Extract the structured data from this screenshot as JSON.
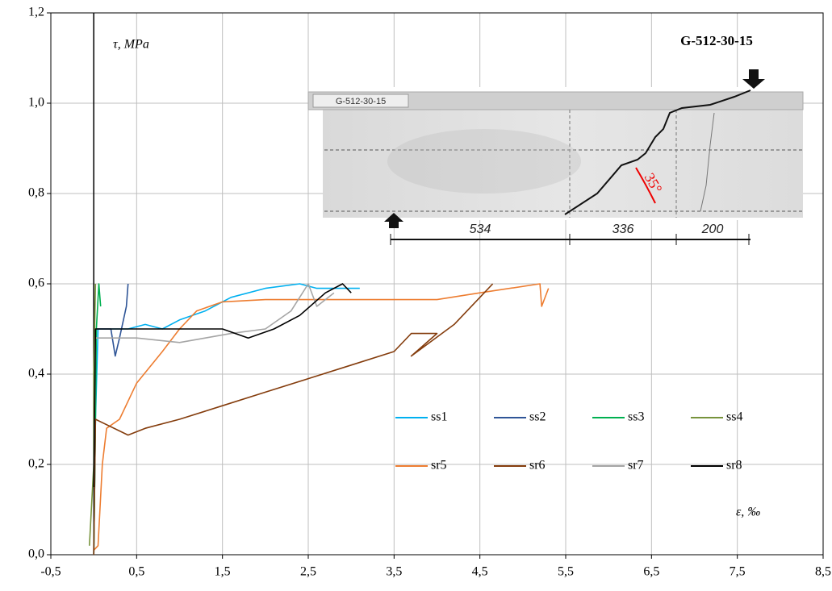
{
  "chart_data": {
    "type": "line",
    "axis_labels": {
      "y": "τ, MPa",
      "x": "ε, ‰"
    },
    "annotations": {
      "specimen": "G-512-30-15",
      "photo_label": "G-512-30-15",
      "dimensions": [
        "534",
        "336",
        "200"
      ],
      "angle": "35°"
    },
    "xlim": [
      -0.5,
      8.5
    ],
    "ylim": [
      0,
      1.2
    ],
    "xticks": [
      {
        "value": -0.5,
        "label": "-0,5"
      },
      {
        "value": 0.5,
        "label": "0,5"
      },
      {
        "value": 1.5,
        "label": "1,5"
      },
      {
        "value": 2.5,
        "label": "2,5"
      },
      {
        "value": 3.5,
        "label": "3,5"
      },
      {
        "value": 4.5,
        "label": "4,5"
      },
      {
        "value": 5.5,
        "label": "5,5"
      },
      {
        "value": 6.5,
        "label": "6,5"
      },
      {
        "value": 7.5,
        "label": "7,5"
      },
      {
        "value": 8.5,
        "label": "8,5"
      }
    ],
    "yticks": [
      {
        "value": 0,
        "label": "0,0"
      },
      {
        "value": 0.2,
        "label": "0,2"
      },
      {
        "value": 0.4,
        "label": "0,4"
      },
      {
        "value": 0.6,
        "label": "0,6"
      },
      {
        "value": 0.8,
        "label": "0,8"
      },
      {
        "value": 1.0,
        "label": "1,0"
      },
      {
        "value": 1.2,
        "label": "1,2"
      }
    ],
    "grid": true,
    "series": [
      {
        "name": "ss1",
        "color": "#00b0f0",
        "x": [
          0,
          0.02,
          0.05,
          0.4,
          0.6,
          0.8,
          1.0,
          1.3,
          1.6,
          2.0,
          2.4,
          2.6,
          3.1
        ],
        "values": [
          0,
          0.3,
          0.5,
          0.5,
          0.51,
          0.5,
          0.52,
          0.54,
          0.57,
          0.59,
          0.6,
          0.59,
          0.59
        ]
      },
      {
        "name": "ss2",
        "color": "#2f5597",
        "x": [
          0,
          0.01,
          0.03,
          0.2,
          0.25,
          0.3,
          0.38,
          0.4
        ],
        "values": [
          0,
          0.3,
          0.5,
          0.5,
          0.44,
          0.48,
          0.55,
          0.6
        ]
      },
      {
        "name": "ss3",
        "color": "#00b050",
        "x": [
          0,
          0.02,
          0.03,
          0.06,
          0.08
        ],
        "values": [
          0,
          0.3,
          0.5,
          0.6,
          0.55
        ]
      },
      {
        "name": "ss4",
        "color": "#77933c",
        "x": [
          -0.05,
          0,
          0,
          0.02
        ],
        "values": [
          0.02,
          0.2,
          0.4,
          0.6
        ]
      },
      {
        "name": "sr5",
        "color": "#ed7d31",
        "x": [
          0,
          0.05,
          0.1,
          0.15,
          0.3,
          0.5,
          0.8,
          1.0,
          1.2,
          1.5,
          2.0,
          3.0,
          4.0,
          4.5,
          5.2,
          5.22,
          5.3
        ],
        "values": [
          0.01,
          0.02,
          0.2,
          0.28,
          0.3,
          0.38,
          0.45,
          0.5,
          0.54,
          0.56,
          0.565,
          0.565,
          0.565,
          0.58,
          0.6,
          0.55,
          0.59
        ]
      },
      {
        "name": "sr6",
        "color": "#843c0c",
        "x": [
          0,
          0.02,
          0.4,
          0.6,
          1.0,
          1.5,
          2.0,
          2.5,
          3.0,
          3.5,
          3.7,
          4.0,
          3.7,
          4.2,
          4.5,
          4.65
        ],
        "values": [
          0,
          0.3,
          0.265,
          0.28,
          0.3,
          0.33,
          0.36,
          0.39,
          0.42,
          0.45,
          0.49,
          0.49,
          0.44,
          0.51,
          0.57,
          0.6
        ]
      },
      {
        "name": "sr7",
        "color": "#a5a5a5",
        "x": [
          0,
          0.02,
          0.5,
          1.0,
          1.3,
          1.6,
          2.0,
          2.3,
          2.5,
          2.6,
          2.8
        ],
        "values": [
          0.15,
          0.48,
          0.48,
          0.47,
          0.48,
          0.49,
          0.5,
          0.54,
          0.6,
          0.55,
          0.58
        ]
      },
      {
        "name": "sr8",
        "color": "#000000",
        "x": [
          0,
          0.02,
          0.5,
          1.0,
          1.5,
          1.8,
          2.1,
          2.4,
          2.7,
          2.9,
          3.0
        ],
        "values": [
          0.15,
          0.5,
          0.5,
          0.5,
          0.5,
          0.48,
          0.5,
          0.53,
          0.58,
          0.6,
          0.58
        ]
      }
    ]
  }
}
